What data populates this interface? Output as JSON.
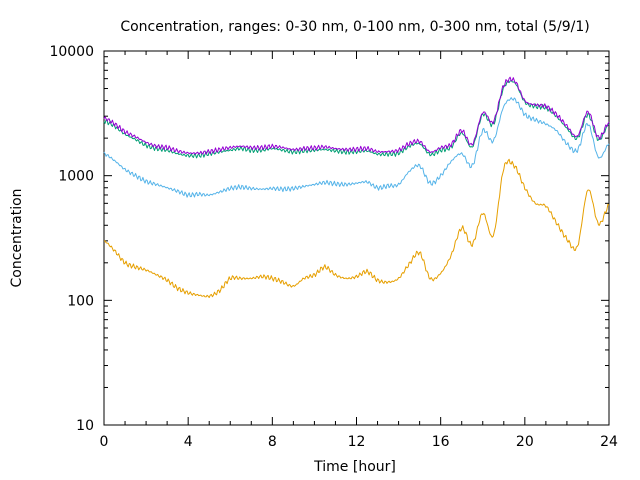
{
  "chart_data": {
    "type": "line",
    "title": "Concentration, ranges: 0-30 nm, 0-100 nm, 0-300 nm, total (5/9/1)",
    "xlabel": "Time [hour]",
    "ylabel": "Concentration",
    "xlim": [
      0,
      24
    ],
    "ylim": [
      10,
      10000
    ],
    "yscale": "log",
    "grid": false,
    "xticks": [
      0,
      4,
      8,
      12,
      16,
      20,
      24
    ],
    "xtick_labels": [
      "0",
      "4",
      "8",
      "12",
      "16",
      "20",
      "24"
    ],
    "yticks": [
      10,
      100,
      1000,
      10000
    ],
    "ytick_labels": [
      "10",
      "100",
      "1000",
      "10000"
    ],
    "x": [
      0,
      0.5,
      1,
      1.5,
      2,
      2.5,
      3,
      3.5,
      4,
      4.5,
      5,
      5.5,
      6,
      6.5,
      7,
      7.5,
      8,
      8.5,
      9,
      9.5,
      10,
      10.5,
      11,
      11.5,
      12,
      12.5,
      13,
      13.5,
      14,
      14.5,
      15,
      15.5,
      16,
      16.5,
      17,
      17.5,
      18,
      18.5,
      19,
      19.5,
      20,
      20.5,
      21,
      21.5,
      22,
      22.5,
      23,
      23.5,
      24
    ],
    "series": [
      {
        "color": "#e69f00",
        "values": [
          300,
          250,
          200,
          185,
          175,
          160,
          145,
          125,
          115,
          110,
          108,
          120,
          150,
          150,
          150,
          155,
          150,
          140,
          130,
          150,
          160,
          185,
          160,
          150,
          155,
          170,
          145,
          140,
          150,
          195,
          240,
          150,
          165,
          230,
          380,
          280,
          500,
          330,
          1150,
          1200,
          800,
          600,
          570,
          420,
          310,
          270,
          770,
          410,
          580
        ]
      },
      {
        "color": "#56b4e9",
        "values": [
          1500,
          1320,
          1120,
          1000,
          900,
          850,
          800,
          750,
          700,
          710,
          700,
          740,
          790,
          810,
          790,
          780,
          790,
          780,
          790,
          820,
          850,
          880,
          860,
          850,
          870,
          890,
          800,
          830,
          850,
          1080,
          1200,
          870,
          1000,
          1300,
          1500,
          1200,
          2300,
          1900,
          3600,
          4100,
          3100,
          2800,
          2600,
          2300,
          1800,
          1600,
          2600,
          1400,
          1800
        ]
      },
      {
        "color": "#009e73",
        "values": [
          2750,
          2500,
          2150,
          1950,
          1750,
          1650,
          1600,
          1500,
          1450,
          1450,
          1500,
          1550,
          1600,
          1650,
          1600,
          1600,
          1650,
          1600,
          1550,
          1580,
          1600,
          1620,
          1580,
          1550,
          1560,
          1580,
          1490,
          1490,
          1520,
          1720,
          1800,
          1480,
          1600,
          1700,
          2200,
          1700,
          3100,
          2600,
          5100,
          5600,
          3900,
          3600,
          3500,
          3000,
          2400,
          2000,
          3100,
          1950,
          2600
        ]
      },
      {
        "color": "#9400d3",
        "values": [
          2900,
          2600,
          2250,
          2050,
          1850,
          1720,
          1680,
          1580,
          1520,
          1520,
          1560,
          1620,
          1680,
          1720,
          1680,
          1680,
          1720,
          1680,
          1620,
          1650,
          1670,
          1700,
          1650,
          1620,
          1630,
          1650,
          1560,
          1560,
          1600,
          1800,
          1880,
          1550,
          1680,
          1780,
          2300,
          1780,
          3200,
          2700,
          5300,
          5800,
          4000,
          3700,
          3600,
          3100,
          2500,
          2080,
          3250,
          2020,
          2700
        ]
      }
    ]
  }
}
